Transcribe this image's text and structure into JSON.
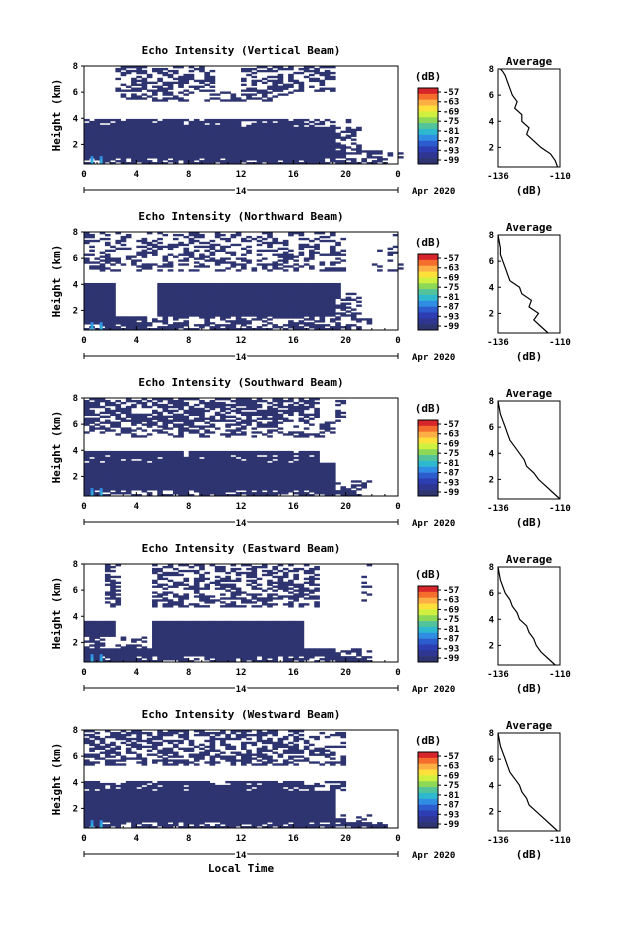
{
  "figure": {
    "date_label": "Apr 2020",
    "day_label": "14",
    "xlabel_bottom": "Local Time",
    "colorbar_unit": "(dB)",
    "colorbar_ticks": [
      "-57",
      "-63",
      "-69",
      "-75",
      "-81",
      "-87",
      "-93",
      "-99"
    ],
    "colorbar_colors": [
      "#d7262b",
      "#f46d2d",
      "#fdae45",
      "#fde03a",
      "#d0f040",
      "#8ed858",
      "#52c39a",
      "#2eb9cf",
      "#2f8ee3",
      "#2d5ccf",
      "#2d3eb3",
      "#2f3692",
      "#2e3470"
    ],
    "no_echo_color": "#ffffff",
    "profile_title": "Average",
    "profile_xticks": [
      "-136",
      "-110"
    ],
    "profile_xlabel": "(dB)"
  },
  "chart_data": [
    {
      "type": "heatmap",
      "title": "Echo Intensity (Vertical Beam)",
      "xlabel": "",
      "ylabel": "Height (km)",
      "xlim": [
        0,
        24
      ],
      "ylim": [
        0.5,
        8
      ],
      "xticks": [
        "0",
        "4",
        "8",
        "12",
        "16",
        "20",
        "0"
      ],
      "yticks": [
        "2",
        "4",
        "6",
        "8"
      ],
      "colorbar": {
        "label": "(dB)",
        "range": [
          -99,
          -57
        ]
      },
      "profile": {
        "title": "Average",
        "xlabel": "(dB)",
        "xlim": [
          -136,
          -110
        ],
        "ylim": [
          0.5,
          8
        ],
        "x": [
          -111,
          -112,
          -114,
          -118,
          -121,
          -124,
          -123,
          -126,
          -126,
          -129,
          -128,
          -130,
          -131,
          -132,
          -133,
          -134,
          -135
        ],
        "y": [
          0.5,
          1.0,
          1.5,
          2.0,
          2.5,
          3.0,
          3.5,
          4.0,
          4.5,
          5.0,
          5.5,
          6.0,
          6.5,
          7.0,
          7.5,
          7.8,
          8.0
        ]
      }
    },
    {
      "type": "heatmap",
      "title": "Echo Intensity (Northward Beam)",
      "xlabel": "",
      "ylabel": "Height (km)",
      "xlim": [
        0,
        24
      ],
      "ylim": [
        0.5,
        8
      ],
      "xticks": [
        "0",
        "4",
        "8",
        "12",
        "16",
        "20",
        "0"
      ],
      "yticks": [
        "2",
        "4",
        "6",
        "8"
      ],
      "colorbar": {
        "label": "(dB)",
        "range": [
          -99,
          -57
        ]
      },
      "profile": {
        "title": "Average",
        "xlabel": "(dB)",
        "xlim": [
          -136,
          -110
        ],
        "ylim": [
          0.5,
          8
        ],
        "x": [
          -115,
          -118,
          -121,
          -119,
          -123,
          -122,
          -126,
          -127,
          -131,
          -132,
          -133,
          -134,
          -135,
          -135,
          -136
        ],
        "y": [
          0.5,
          1.0,
          1.5,
          2.0,
          2.5,
          3.0,
          3.5,
          4.0,
          4.5,
          5.0,
          5.5,
          6.0,
          6.5,
          7.0,
          8.0
        ]
      }
    },
    {
      "type": "heatmap",
      "title": "Echo Intensity (Southward Beam)",
      "xlabel": "",
      "ylabel": "Height (km)",
      "xlim": [
        0,
        24
      ],
      "ylim": [
        0.5,
        8
      ],
      "xticks": [
        "0",
        "4",
        "8",
        "12",
        "16",
        "20",
        "0"
      ],
      "yticks": [
        "2",
        "4",
        "6",
        "8"
      ],
      "colorbar": {
        "label": "(dB)",
        "range": [
          -99,
          -57
        ]
      },
      "profile": {
        "title": "Average",
        "xlabel": "(dB)",
        "xlim": [
          -136,
          -110
        ],
        "ylim": [
          0.5,
          8
        ],
        "x": [
          -110,
          -113,
          -116,
          -119,
          -121,
          -124,
          -125,
          -127,
          -129,
          -131,
          -132,
          -133,
          -134,
          -135,
          -136
        ],
        "y": [
          0.5,
          1.0,
          1.5,
          2.0,
          2.5,
          3.0,
          3.5,
          4.0,
          4.5,
          5.0,
          5.5,
          6.0,
          6.5,
          7.0,
          8.0
        ]
      }
    },
    {
      "type": "heatmap",
      "title": "Echo Intensity (Eastward Beam)",
      "xlabel": "",
      "ylabel": "Height (km)",
      "xlim": [
        0,
        24
      ],
      "ylim": [
        0.5,
        8
      ],
      "xticks": [
        "0",
        "4",
        "8",
        "12",
        "16",
        "20",
        "0"
      ],
      "yticks": [
        "2",
        "4",
        "6",
        "8"
      ],
      "colorbar": {
        "label": "(dB)",
        "range": [
          -99,
          -57
        ]
      },
      "profile": {
        "title": "Average",
        "xlabel": "(dB)",
        "xlim": [
          -136,
          -110
        ],
        "ylim": [
          0.5,
          8
        ],
        "x": [
          -112,
          -115,
          -118,
          -120,
          -121,
          -123,
          -124,
          -127,
          -128,
          -130,
          -131,
          -133,
          -134,
          -135,
          -136
        ],
        "y": [
          0.5,
          1.0,
          1.5,
          2.0,
          2.5,
          3.0,
          3.5,
          4.0,
          4.5,
          5.0,
          5.5,
          6.0,
          6.5,
          7.0,
          8.0
        ]
      }
    },
    {
      "type": "heatmap",
      "title": "Echo Intensity (Westward Beam)",
      "xlabel": "Local Time",
      "ylabel": "Height (km)",
      "xlim": [
        0,
        24
      ],
      "ylim": [
        0.5,
        8
      ],
      "xticks": [
        "0",
        "4",
        "8",
        "12",
        "16",
        "20",
        "0"
      ],
      "yticks": [
        "2",
        "4",
        "6",
        "8"
      ],
      "colorbar": {
        "label": "(dB)",
        "range": [
          -99,
          -57
        ]
      },
      "profile": {
        "title": "Average",
        "xlabel": "(dB)",
        "xlim": [
          -136,
          -110
        ],
        "ylim": [
          0.5,
          8
        ],
        "x": [
          -111,
          -114,
          -117,
          -120,
          -123,
          -124,
          -126,
          -127,
          -129,
          -131,
          -132,
          -133,
          -134,
          -135,
          -136
        ],
        "y": [
          0.5,
          1.0,
          1.5,
          2.0,
          2.5,
          3.0,
          3.5,
          4.0,
          4.5,
          5.0,
          5.5,
          6.0,
          6.5,
          7.0,
          8.0
        ]
      }
    }
  ]
}
